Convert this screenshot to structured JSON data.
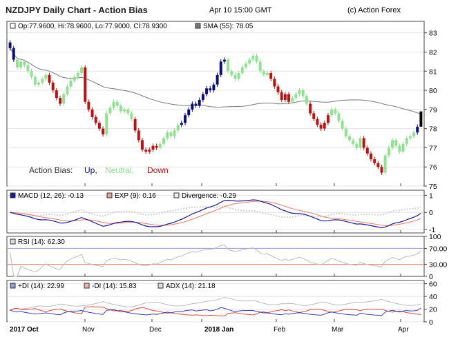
{
  "header": {
    "title": "NZDJPY Daily Chart - Action Bias",
    "datetime": "Apr 10 15:00 GMT",
    "copyright": "(c) Action Forex"
  },
  "price_panel": {
    "ohlc_text": "Op:77.9600, Hi:78.9600, Lo:77.9000, Cl:78.9300",
    "sma_text": "SMA (55): 78.05",
    "bias_label": "Action Bias:",
    "bias_up": "Up,",
    "bias_neutral": "Neutral,",
    "bias_down": "Down",
    "y_ticks": [
      "83",
      "82",
      "81",
      "80",
      "79",
      "78",
      "77",
      "76",
      "75"
    ]
  },
  "macd_panel": {
    "macd_text": "MACD (12, 26): -0.13",
    "exp_text": "EXP (9): 0.16",
    "div_text": "Divergence: -0.29",
    "y_ticks": [
      "1",
      "0",
      "-1"
    ]
  },
  "rsi_panel": {
    "rsi_text": "RSI (14): 62.30",
    "y_ticks": [
      "100",
      "70.00",
      "30.00",
      "0"
    ]
  },
  "dmi_panel": {
    "pdi_text": "+DI (14): 22.99",
    "mdi_text": "-DI (14): 15.83",
    "adx_text": "ADX (14): 21.18",
    "y_ticks": [
      "60",
      "40",
      "20",
      "0"
    ]
  },
  "x_labels": [
    "2017 Oct",
    "Nov",
    "Dec",
    "2018 Jan",
    "Feb",
    "Mar",
    "Apr"
  ],
  "colors": {
    "up": "#0b0b7a",
    "neutral": "#8fe28f",
    "down": "#c40d0d",
    "sma": "#777777",
    "macd": "#1a1a8c",
    "exp": "#e07a6a",
    "divergence": "#cfcfcf",
    "rsi": "#bbbbbb",
    "pdi": "#3b3bb0",
    "mdi": "#d44a3a",
    "adx": "#bbbbbb"
  },
  "chart_data": [
    {
      "type": "candlestick",
      "title": "NZDJPY Daily Chart - Action Bias",
      "ylim": [
        75,
        83.6
      ],
      "x_labels": [
        "2017 Oct",
        "Nov",
        "Dec",
        "2018 Jan",
        "Feb",
        "Mar",
        "Apr"
      ],
      "bias": [
        "U",
        "U",
        "N",
        "N",
        "N",
        "N",
        "N",
        "N",
        "N",
        "N",
        "N",
        "D",
        "D",
        "D",
        "D",
        "N",
        "N",
        "N",
        "N",
        "N",
        "N",
        "D",
        "D",
        "D",
        "D",
        "D",
        "D",
        "N",
        "N",
        "N",
        "N",
        "N",
        "N",
        "N",
        "N",
        "D",
        "D",
        "D",
        "D",
        "D",
        "D",
        "D",
        "N",
        "N",
        "N",
        "N",
        "N",
        "N",
        "U",
        "U",
        "U",
        "U",
        "U",
        "U",
        "U",
        "U",
        "U",
        "U",
        "U",
        "U",
        "U",
        "N",
        "N",
        "N",
        "N",
        "N",
        "N",
        "N",
        "N",
        "N",
        "N",
        "N",
        "N",
        "D",
        "D",
        "D",
        "D",
        "D",
        "D",
        "N",
        "N",
        "N",
        "N",
        "N",
        "D",
        "D",
        "D",
        "D",
        "D",
        "D",
        "N",
        "N",
        "N",
        "N",
        "N",
        "N",
        "N",
        "N",
        "N",
        "D",
        "D",
        "D",
        "D",
        "D",
        "D",
        "N",
        "N",
        "N",
        "N",
        "N",
        "N",
        "N",
        "N",
        "N",
        "U"
      ],
      "close": [
        82.2,
        81.6,
        81.2,
        81.5,
        81.3,
        81.0,
        80.7,
        80.3,
        80.4,
        80.6,
        80.8,
        80.4,
        80.0,
        79.6,
        79.3,
        79.8,
        80.2,
        80.5,
        80.7,
        80.9,
        81.2,
        79.4,
        79.0,
        78.6,
        78.3,
        78.0,
        77.7,
        78.8,
        79.1,
        79.4,
        79.2,
        78.9,
        79.0,
        78.8,
        78.5,
        77.9,
        77.4,
        76.9,
        76.8,
        76.9,
        77.1,
        77.0,
        77.2,
        77.5,
        77.8,
        77.6,
        77.9,
        78.2,
        78.3,
        78.7,
        79.0,
        79.3,
        79.2,
        79.5,
        79.8,
        80.1,
        80.0,
        80.3,
        80.8,
        81.5,
        81.6,
        81.0,
        80.8,
        80.6,
        80.9,
        81.2,
        81.4,
        81.6,
        81.8,
        81.5,
        81.0,
        80.8,
        80.9,
        80.6,
        80.2,
        79.9,
        79.5,
        79.8,
        79.4,
        79.6,
        79.8,
        80.0,
        79.7,
        79.3,
        78.8,
        78.5,
        78.2,
        78.0,
        78.3,
        78.7,
        79.0,
        78.8,
        78.4,
        78.0,
        77.6,
        77.4,
        77.2,
        77.0,
        77.5,
        77.0,
        76.7,
        76.4,
        76.2,
        76.0,
        75.7,
        76.6,
        77.0,
        77.4,
        77.1,
        76.8,
        77.2,
        77.5,
        77.6,
        77.8,
        78.1,
        78.9
      ]
    },
    {
      "type": "line",
      "name_text": "MACD (12, 26)",
      "series": [
        {
          "name": "MACD (12, 26)",
          "last": -0.13
        },
        {
          "name": "EXP (9)",
          "last": 0.16
        },
        {
          "name": "Divergence",
          "last": -0.29
        }
      ],
      "ylim": [
        -1.2,
        1.3
      ]
    },
    {
      "type": "line",
      "series": [
        {
          "name": "RSI (14)",
          "last": 62.3
        }
      ],
      "ylim": [
        0,
        100
      ],
      "levels": [
        70,
        30
      ]
    },
    {
      "type": "line",
      "series": [
        {
          "name": "+DI (14)",
          "last": 22.99
        },
        {
          "name": "-DI (14)",
          "last": 15.83
        },
        {
          "name": "ADX (14)",
          "last": 21.18
        }
      ],
      "ylim": [
        0,
        65
      ]
    }
  ]
}
